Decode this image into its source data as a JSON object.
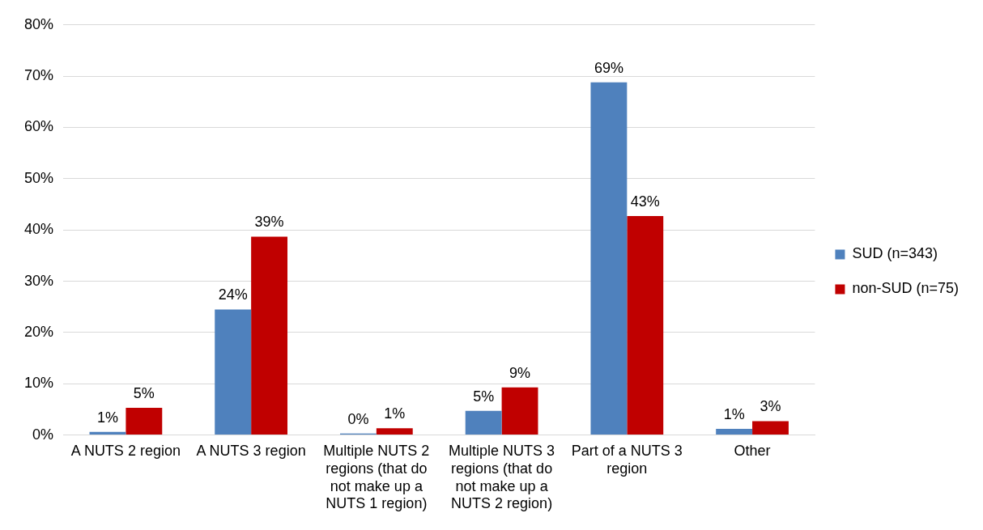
{
  "chart_data": {
    "type": "bar",
    "categories": [
      "A NUTS 2 region",
      "A NUTS 3 region",
      "Multiple NUTS 2 regions (that do not make up a NUTS 1 region)",
      "Multiple NUTS 3 regions (that do not make up a NUTS 2 region)",
      "Part of a NUTS 3 region",
      "Other"
    ],
    "series": [
      {
        "name": "SUD (n=343)",
        "color": "#4f81bd",
        "values": [
          0.6,
          24.5,
          0.3,
          4.7,
          68.8,
          1.2
        ],
        "value_labels": [
          "1%",
          "24%",
          "0%",
          "5%",
          "69%",
          "1%"
        ]
      },
      {
        "name": "non-SUD (n=75)",
        "color": "#c00000",
        "values": [
          5.3,
          38.7,
          1.3,
          9.3,
          42.7,
          2.7
        ],
        "value_labels": [
          "5%",
          "39%",
          "1%",
          "9%",
          "43%",
          "3%"
        ]
      }
    ],
    "ylim": [
      0,
      80
    ],
    "yticks": [
      {
        "value": 0,
        "label": "0%"
      },
      {
        "value": 10,
        "label": "10%"
      },
      {
        "value": 20,
        "label": "20%"
      },
      {
        "value": 30,
        "label": "30%"
      },
      {
        "value": 40,
        "label": "40%"
      },
      {
        "value": 50,
        "label": "50%"
      },
      {
        "value": 60,
        "label": "60%"
      },
      {
        "value": 70,
        "label": "70%"
      },
      {
        "value": 80,
        "label": "80%"
      }
    ],
    "grid": "y",
    "legend": "right"
  }
}
